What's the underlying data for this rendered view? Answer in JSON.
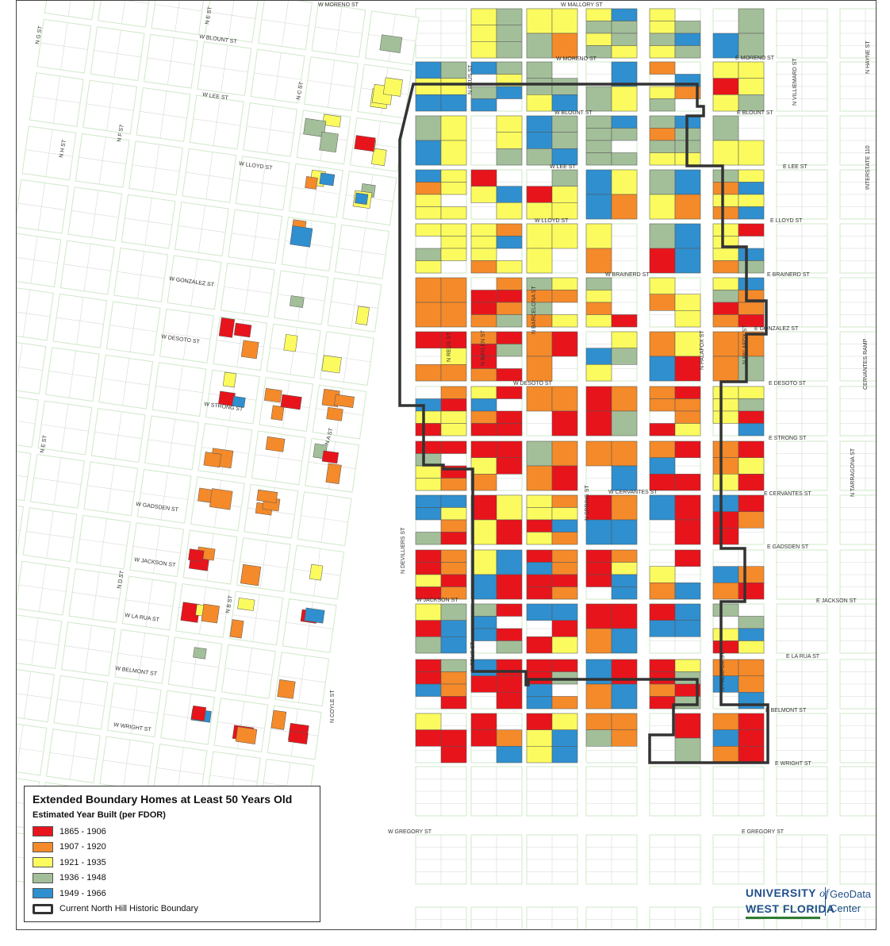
{
  "legend": {
    "title": "Extended Boundary Homes at Least 50 Years Old",
    "subtitle": "Estimated Year Built (per FDOR)",
    "classes": [
      {
        "label": "1865 - 1906",
        "color": "#e8141c"
      },
      {
        "label": "1907 - 1920",
        "color": "#f48a2a"
      },
      {
        "label": "1921 - 1935",
        "color": "#fbfb5f"
      },
      {
        "label": "1936 - 1948",
        "color": "#a3bf9a"
      },
      {
        "label": "1949 - 1966",
        "color": "#2f8fcf"
      }
    ],
    "boundary_label": "Current North Hill Historic Boundary"
  },
  "logo": {
    "line1_a": "UNIVERSITY",
    "line1_b": "of",
    "line2": "WEST FLORIDA",
    "side1": "GeoData",
    "side2": "Center"
  },
  "streets": {
    "w_mallory": "W MALLORY ST",
    "w_moreno": "W MORENO ST",
    "w_moreno_top": "W MORENO ST",
    "e_moreno": "E MORENO ST",
    "w_blount": "W BLOUNT ST",
    "w_blount_left": "W BLOUNT ST",
    "e_blount": "E BLOUNT ST",
    "w_lee": "W LEE ST",
    "w_lee_left": "W LEE ST",
    "e_lee": "E LEE ST",
    "w_lloyd": "W LLOYD ST",
    "w_lloyd_left": "W LLOYD ST",
    "e_lloyd": "E LLOYD ST",
    "w_brainerd": "W BRAINERD ST",
    "e_brainerd": "E BRAINERD ST",
    "w_gonzalez": "W GONZALEZ ST",
    "e_gonzalez": "E GONZALEZ ST",
    "w_desoto": "W DESOTO ST",
    "w_desoto_left": "W DESOTO ST",
    "e_desoto": "E DESOTO ST",
    "w_strong": "W STRONG ST",
    "e_strong": "E STRONG ST",
    "w_cervantes": "W CERVANTES ST",
    "e_cervantes": "E CERVANTES ST",
    "w_gadsden": "W GADSDEN ST",
    "e_gadsden": "E GADSDEN ST",
    "w_jackson": "W JACKSON ST",
    "w_jackson_left": "W JACKSON ST",
    "e_jackson": "E JACKSON ST",
    "w_la_rua": "W LA RUA ST",
    "e_la_rua": "E LA RUA ST",
    "w_belmont": "W BELMONT ST",
    "e_belmont": "E BELMONT ST",
    "w_wright": "W WRIGHT ST",
    "e_wright": "E WRIGHT ST",
    "w_gregory": "W GREGORY ST",
    "e_gregory": "E GREGORY ST",
    "n_reus": "N REUS ST",
    "n_reus_2": "N REUS ST",
    "n_reus_3": "N REUS ST",
    "n_barcelona": "N BARCELONA ST",
    "n_palafox": "N PALAFOX ST",
    "n_palafox_2": "N PALAFOX ST",
    "n_palafox_3": "N PALAFOX ST",
    "n_baylen": "N BAYLEN ST",
    "n_spring": "N SPRING ST",
    "n_devilliers": "N DEVILLIERS ST",
    "n_coyle": "N COYLE ST",
    "n_a": "N A ST",
    "n_c": "N C ST",
    "n_e": "N E ST",
    "n_e_2": "N E ST",
    "n_g": "N G ST",
    "n_f": "N F ST",
    "n_b": "N B ST",
    "n_d": "N D ST",
    "n_h": "N H ST",
    "n_villiemard": "N VILLIEMARD ST",
    "n_hayne": "N HAYNE ST",
    "n_tarragona": "N TARRAGONA ST",
    "cervantes_ramp": "CERVANTES RAMP",
    "i110": "INTERSTATE 110"
  }
}
